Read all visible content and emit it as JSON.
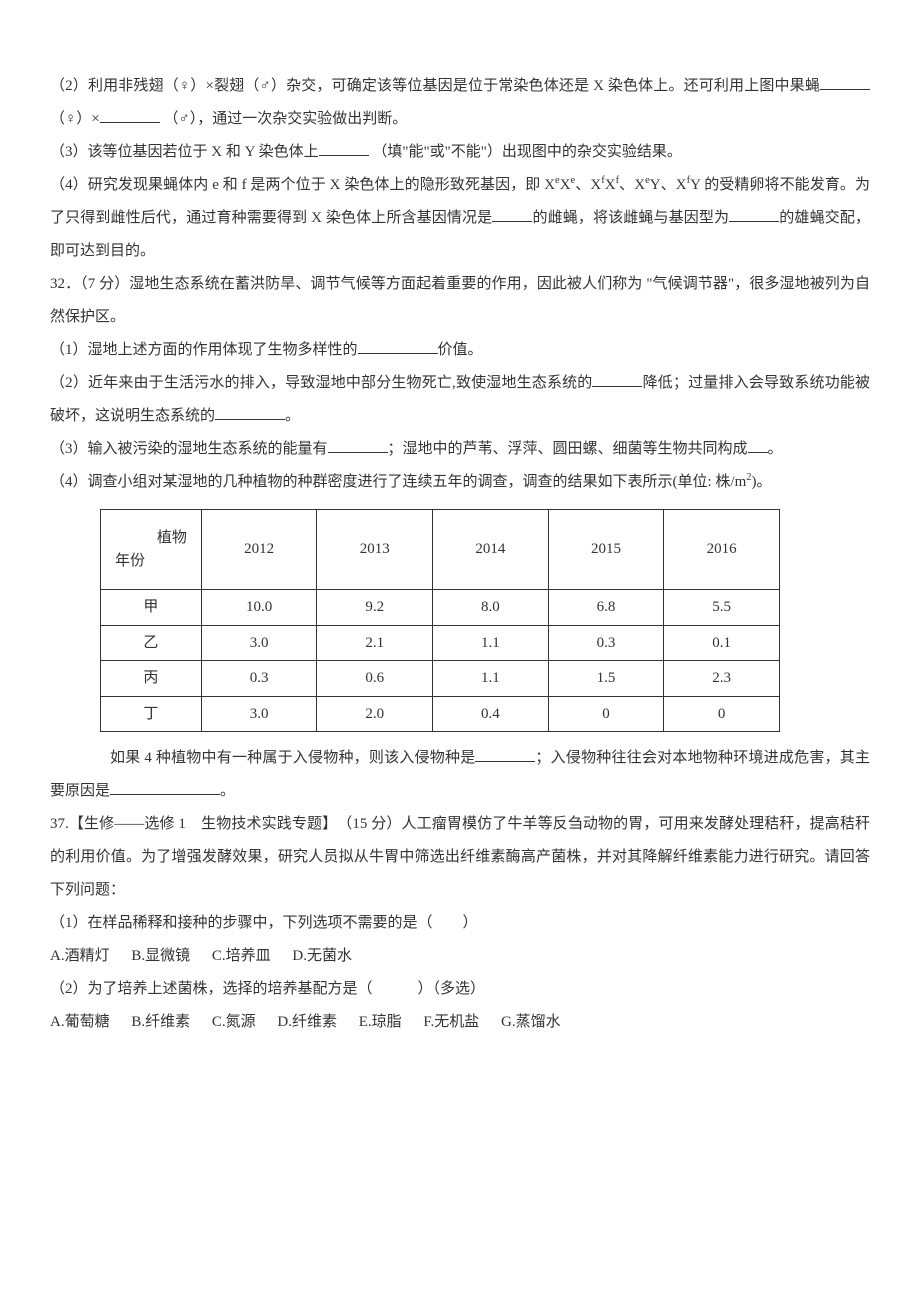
{
  "q2": {
    "text_a": "（2）利用非残翅（♀）×裂翅（♂）杂交，可确定该等位基因是位于常染色体还是 X 染色体上。还可利用上图中果蝇",
    "text_b": "（♀）×",
    "text_c": "（♂），通过一次杂交实验做出判断。"
  },
  "q3": {
    "text_a": "（3）该等位基因若位于 X 和 Y 染色体上",
    "text_b": "（填\"能\"或\"不能\"）出现图中的杂交实验结果。"
  },
  "q4": {
    "text_a": "（4）研究发现果蝇体内 e 和 f 是两个位于 X 染色体上的隐形致死基因，即 X",
    "sup1": "e",
    "mid1": "X",
    "sup2": "e",
    "sep1": "、X",
    "sup3": "f",
    "mid2": "X",
    "sup4": "f",
    "sep2": "、X",
    "sup5": "e",
    "mid3": "Y、X",
    "sup6": "f",
    "mid4": "Y",
    "text_b": " 的受精卵将不能发育。为了只得到雌性后代，通过育种需要得到 X 染色体上所含基因情况是",
    "text_c": "的雌蝇，将该雌蝇与基因型为",
    "text_d": "的雄蝇交配，即可达到目的。"
  },
  "q32": {
    "intro": "32．（7 分）湿地生态系统在蓄洪防旱、调节气候等方面起着重要的作用，因此被人们称为 \"气候调节器\"，很多湿地被列为自然保护区。",
    "p1_a": "（1）湿地上述方面的作用体现了生物多样性的",
    "p1_b": "价值。",
    "p2_a": "（2）近年来由于生活污水的排入，导致湿地中部分生物死亡,致使湿地生态系统的",
    "p2_b": "降低；过量排入会导致系统功能被破坏，这说明生态系统的",
    "p2_c": "。",
    "p3_a": "（3）输入被污染的湿地生态系统的能量有",
    "p3_b": "；湿地中的芦苇、浮萍、圆田螺、细菌等生物共同构成",
    "p3_c": "。",
    "p4_a": "（4）调查小组对某湿地的几种植物的种群密度进行了连续五年的调查，调查的结果如下表所示(单位: 株/m",
    "p4_sup": "2",
    "p4_b": ")。"
  },
  "table": {
    "col_widths": [
      "100px",
      "116px",
      "116px",
      "116px",
      "116px",
      "116px"
    ],
    "diag_top": "植物",
    "diag_bottom": "年份",
    "headers": [
      "2012",
      "2013",
      "2014",
      "2015",
      "2016"
    ],
    "rows": [
      {
        "label": "甲",
        "values": [
          "10.0",
          "9.2",
          "8.0",
          "6.8",
          "5.5"
        ]
      },
      {
        "label": "乙",
        "values": [
          "3.0",
          "2.1",
          "1.1",
          "0.3",
          "0.1"
        ]
      },
      {
        "label": "丙",
        "values": [
          "0.3",
          "0.6",
          "1.1",
          "1.5",
          "2.3"
        ]
      },
      {
        "label": "丁",
        "values": [
          "3.0",
          "2.0",
          "0.4",
          "0",
          "0"
        ]
      }
    ]
  },
  "q32_after": {
    "text_a": "如果 4 种植物中有一种属于入侵物种，则该入侵物种是",
    "text_b": "；入侵物种往往会对本地物种环境进成危害，其主要原因是",
    "text_c": "。"
  },
  "q37": {
    "intro": "37.【生修——选修 1　生物技术实践专题】　（15 分）人工瘤胃模仿了牛羊等反刍动物的胃，可用来发酵处理秸秆，提高秸秆的利用价值。为了增强发酵效果，研究人员拟从牛胃中筛选出纤维素酶高产菌株，并对其降解纤维素能力进行研究。请回答下列问题：",
    "p1": "（1）在样品稀释和接种的步骤中，下列选项不需要的是（　　）",
    "opts1_a": "A.酒精灯",
    "opts1_b": "B.显微镜",
    "opts1_c": "C.培养皿",
    "opts1_d": "D.无菌水",
    "p2": "（2）为了培养上述菌株，选择的培养基配方是（　　　）（多选）",
    "opts2_a": "A.葡萄糖",
    "opts2_b": "B.纤维素",
    "opts2_c": "C.氮源",
    "opts2_d": "D.纤维素",
    "opts2_e": "E.琼脂",
    "opts2_f": "F.无机盐",
    "opts2_g": "G.蒸馏水"
  },
  "style": {
    "blank_short": "50px",
    "blank_med": "60px",
    "blank_long": "90px",
    "blank_xlong": "120px"
  }
}
